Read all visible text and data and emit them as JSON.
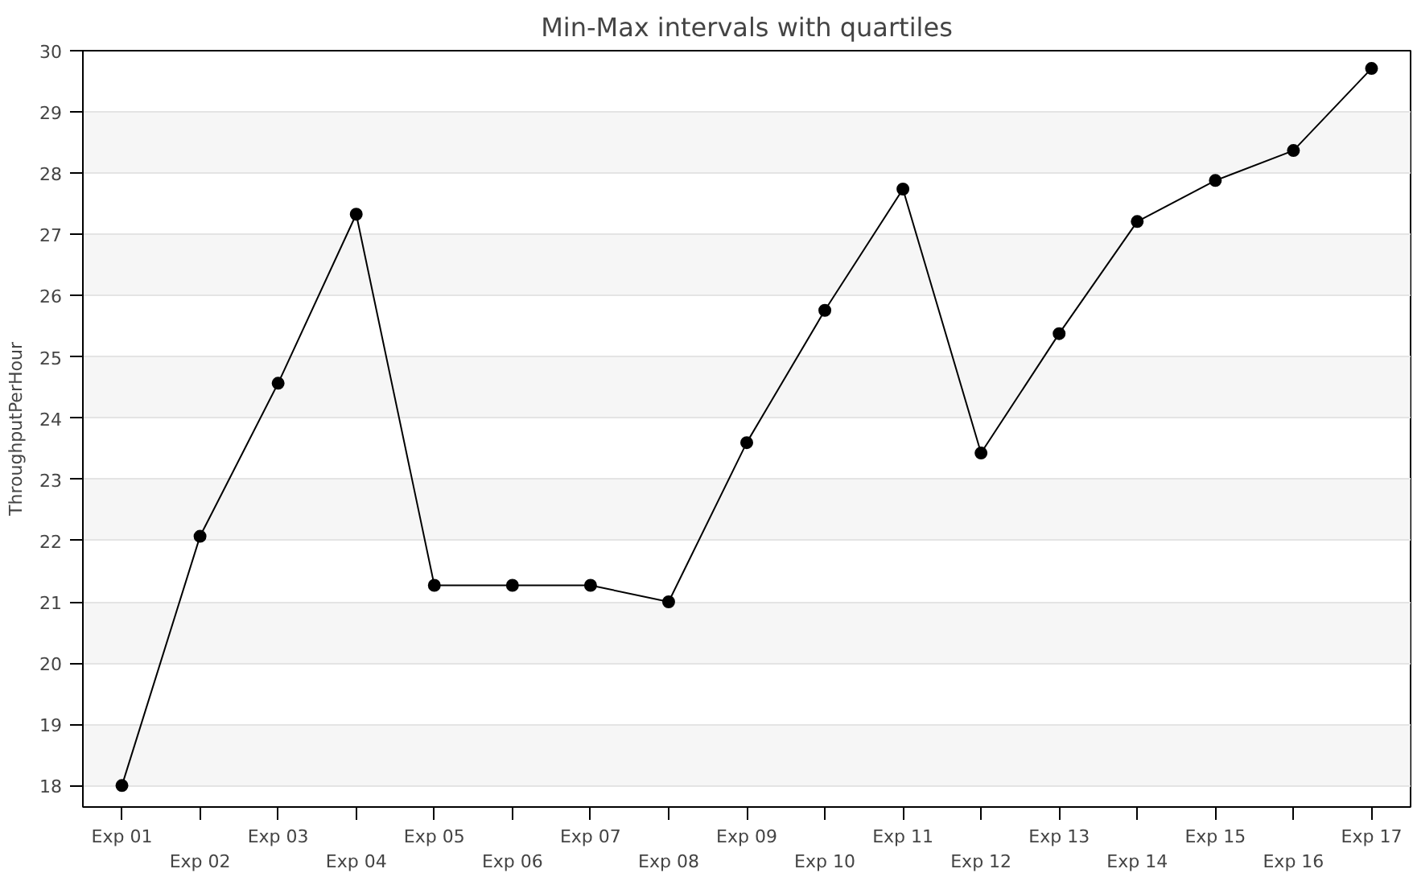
{
  "chart_data": {
    "type": "line",
    "title": "Min-Max intervals with quartiles",
    "ylabel": "ThroughputPerHour",
    "categories": [
      "Exp 01",
      "Exp 02",
      "Exp 03",
      "Exp 04",
      "Exp 05",
      "Exp 06",
      "Exp 07",
      "Exp 08",
      "Exp 09",
      "Exp 10",
      "Exp 11",
      "Exp 12",
      "Exp 13",
      "Exp 14",
      "Exp 15",
      "Exp 16",
      "Exp 17"
    ],
    "series": [
      {
        "color": "#000000",
        "values": [
          18.0,
          22.07,
          24.57,
          27.33,
          21.27,
          21.27,
          21.27,
          21.0,
          23.6,
          25.76,
          27.74,
          23.43,
          25.38,
          27.21,
          27.88,
          28.37,
          29.71
        ]
      }
    ],
    "ylim": [
      17.65,
      30
    ],
    "yticks": [
      18,
      19,
      20,
      21,
      22,
      23,
      24,
      25,
      26,
      27,
      28,
      29,
      30
    ],
    "grid": "y",
    "marker": "circle",
    "line_style": "solid"
  }
}
